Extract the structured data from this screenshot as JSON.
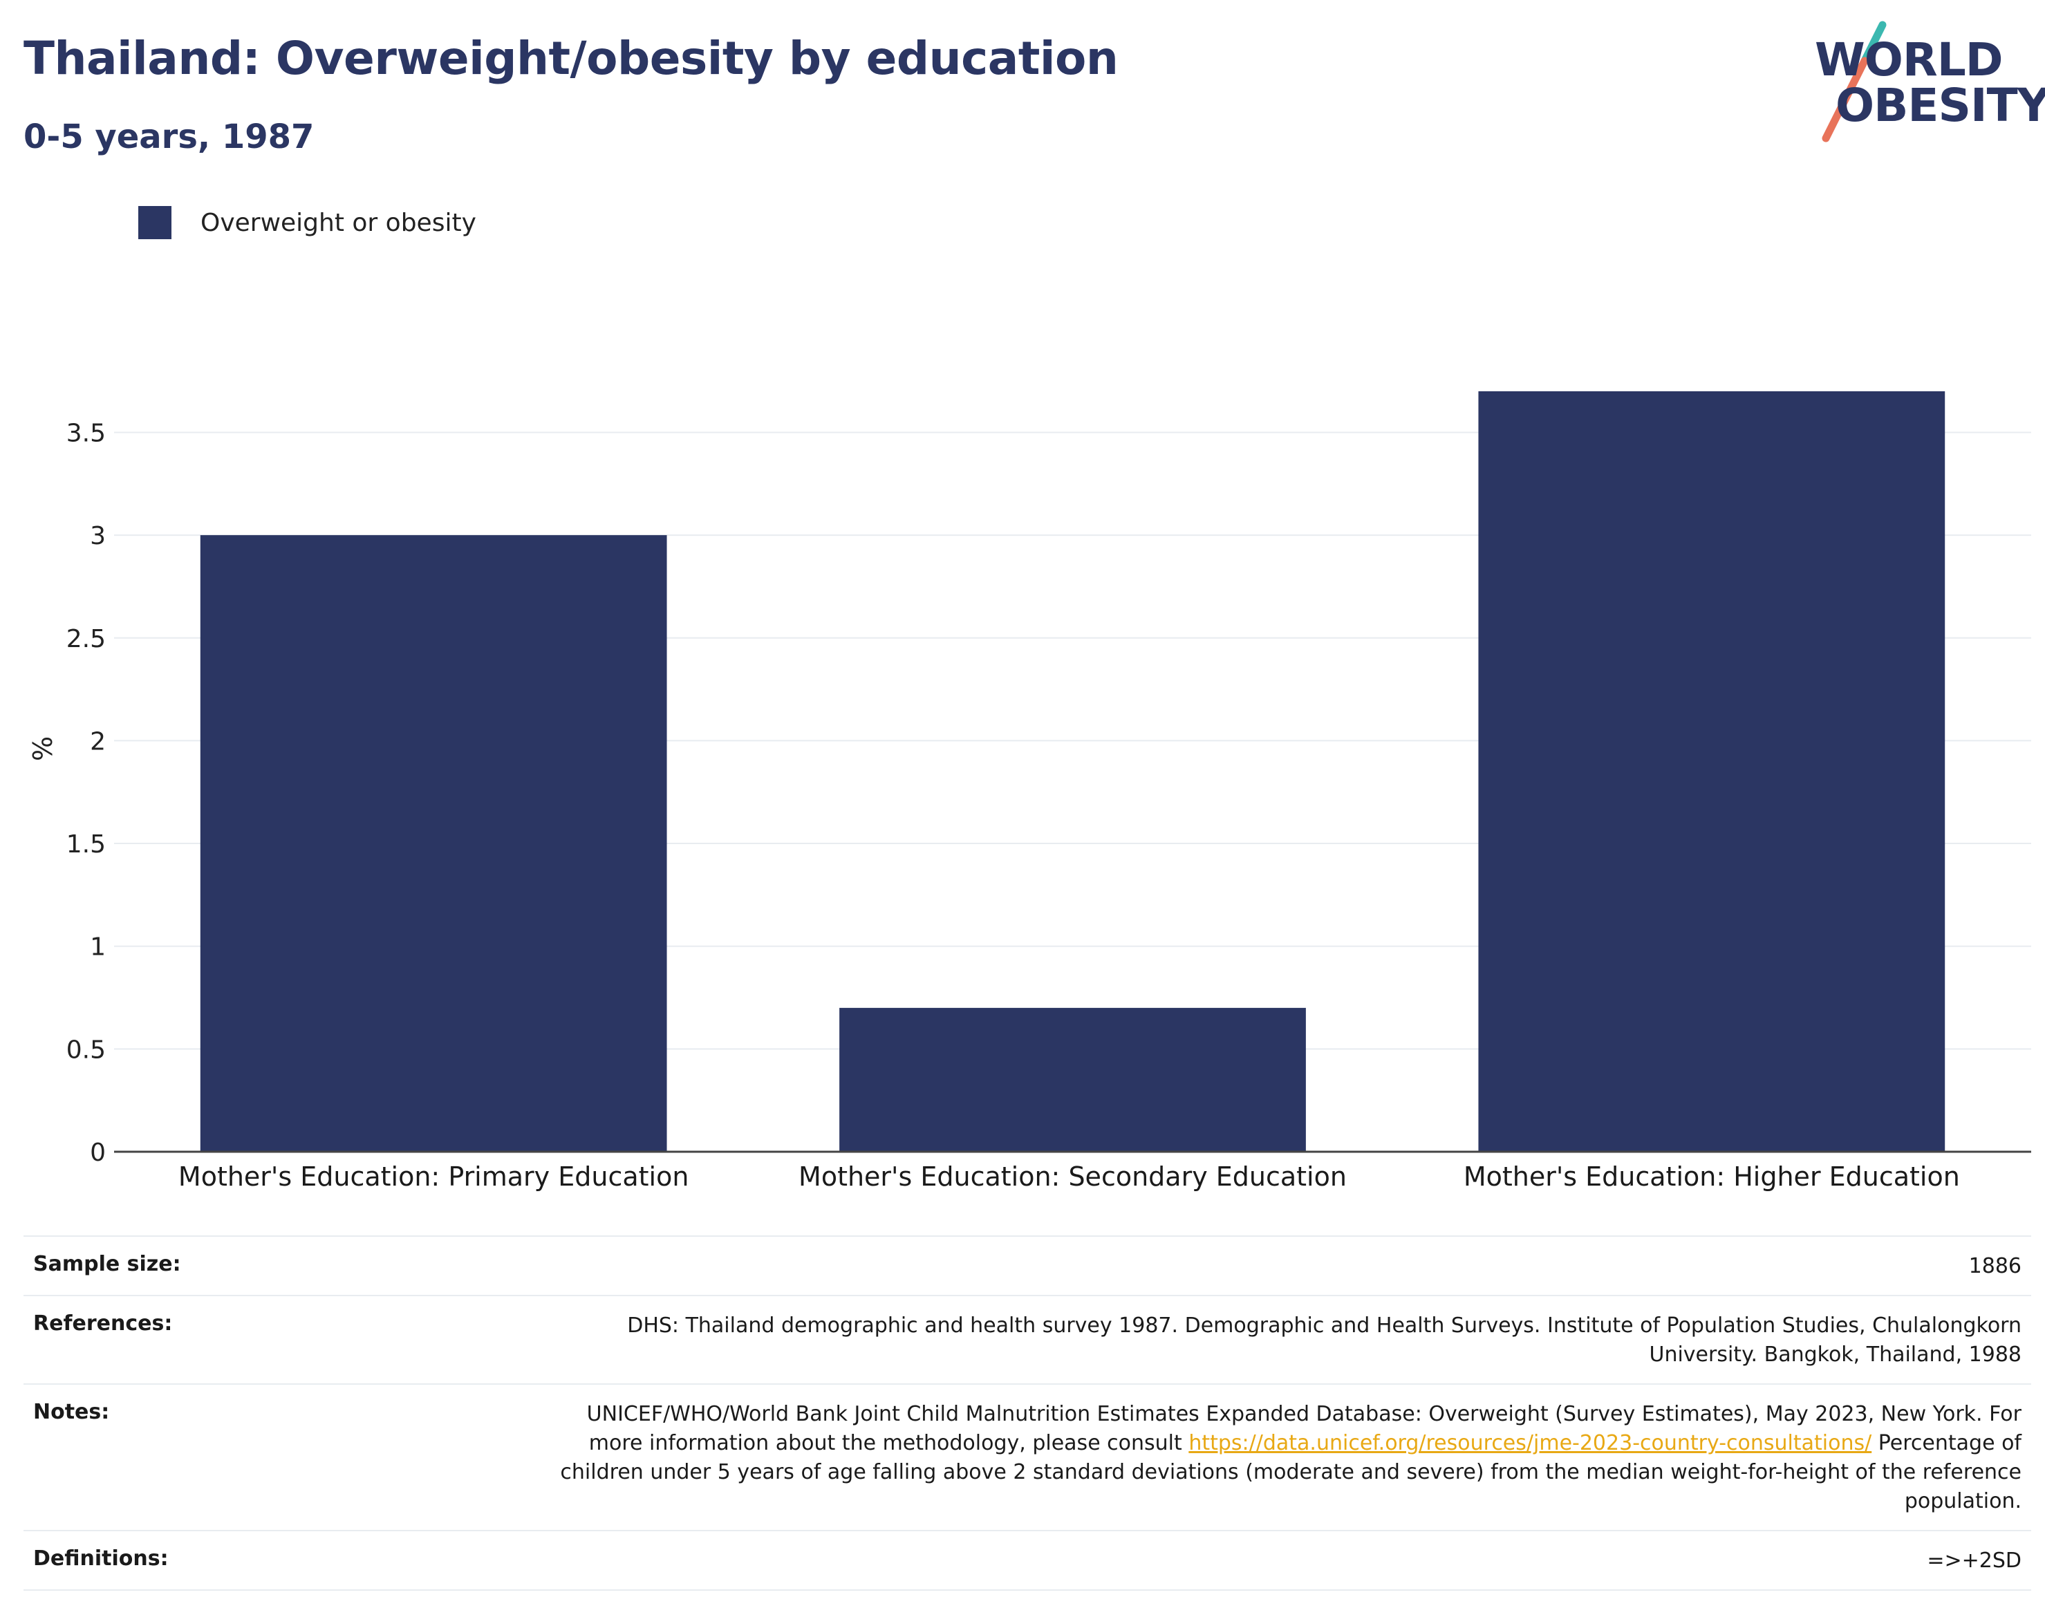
{
  "header": {
    "title": "Thailand: Overweight/obesity by education",
    "subtitle": "0-5 years, 1987"
  },
  "logo": {
    "line1": "WORLD",
    "line2": "OBESITY"
  },
  "legend": {
    "label": "Overweight or obesity"
  },
  "chart_data": {
    "type": "bar",
    "categories": [
      "Mother's Education: Primary Education",
      "Mother's Education: Secondary Education",
      "Mother's Education: Higher Education"
    ],
    "series": [
      {
        "name": "Overweight or obesity",
        "values": [
          3.0,
          0.7,
          3.7
        ],
        "color": "#2b3663"
      }
    ],
    "ylabel": "%",
    "ylim": [
      0,
      3.5
    ],
    "yticks": [
      0,
      0.5,
      1,
      1.5,
      2,
      2.5,
      3,
      3.5
    ],
    "ytick_labels": [
      "0",
      "0.5",
      "1",
      "1.5",
      "2",
      "2.5",
      "3",
      "3.5"
    ],
    "grid": true,
    "legend_position": "top-left"
  },
  "info": {
    "sample_size_label": "Sample size:",
    "sample_size_value": "1886",
    "references_label": "References:",
    "references_value": "DHS: Thailand demographic and health survey 1987. Demographic and Health Surveys. Institute of Population Studies, Chulalongkorn University. Bangkok, Thailand, 1988",
    "notes_label": "Notes:",
    "notes_text1": "UNICEF/WHO/World Bank Joint Child Malnutrition Estimates Expanded Database: Overweight (Survey Estimates), May 2023, New York. For more information about the methodology, please consult ",
    "notes_link": "https://data.unicef.org/resources/jme-2023-country-consultations/",
    "notes_text2": " Percentage of children under 5 years of age falling above 2 standard deviations (moderate and severe) from the median weight-for-height of the reference population.",
    "definitions_label": "Definitions:",
    "definitions_value": "=>+2SD"
  },
  "colors": {
    "bar": "#2b3663",
    "title": "#2b3663",
    "grid": "#e8ecf0",
    "axis": "#444444",
    "link": "#e8a814",
    "logo_teal": "#3bb8b0",
    "logo_coral": "#e8735a"
  }
}
